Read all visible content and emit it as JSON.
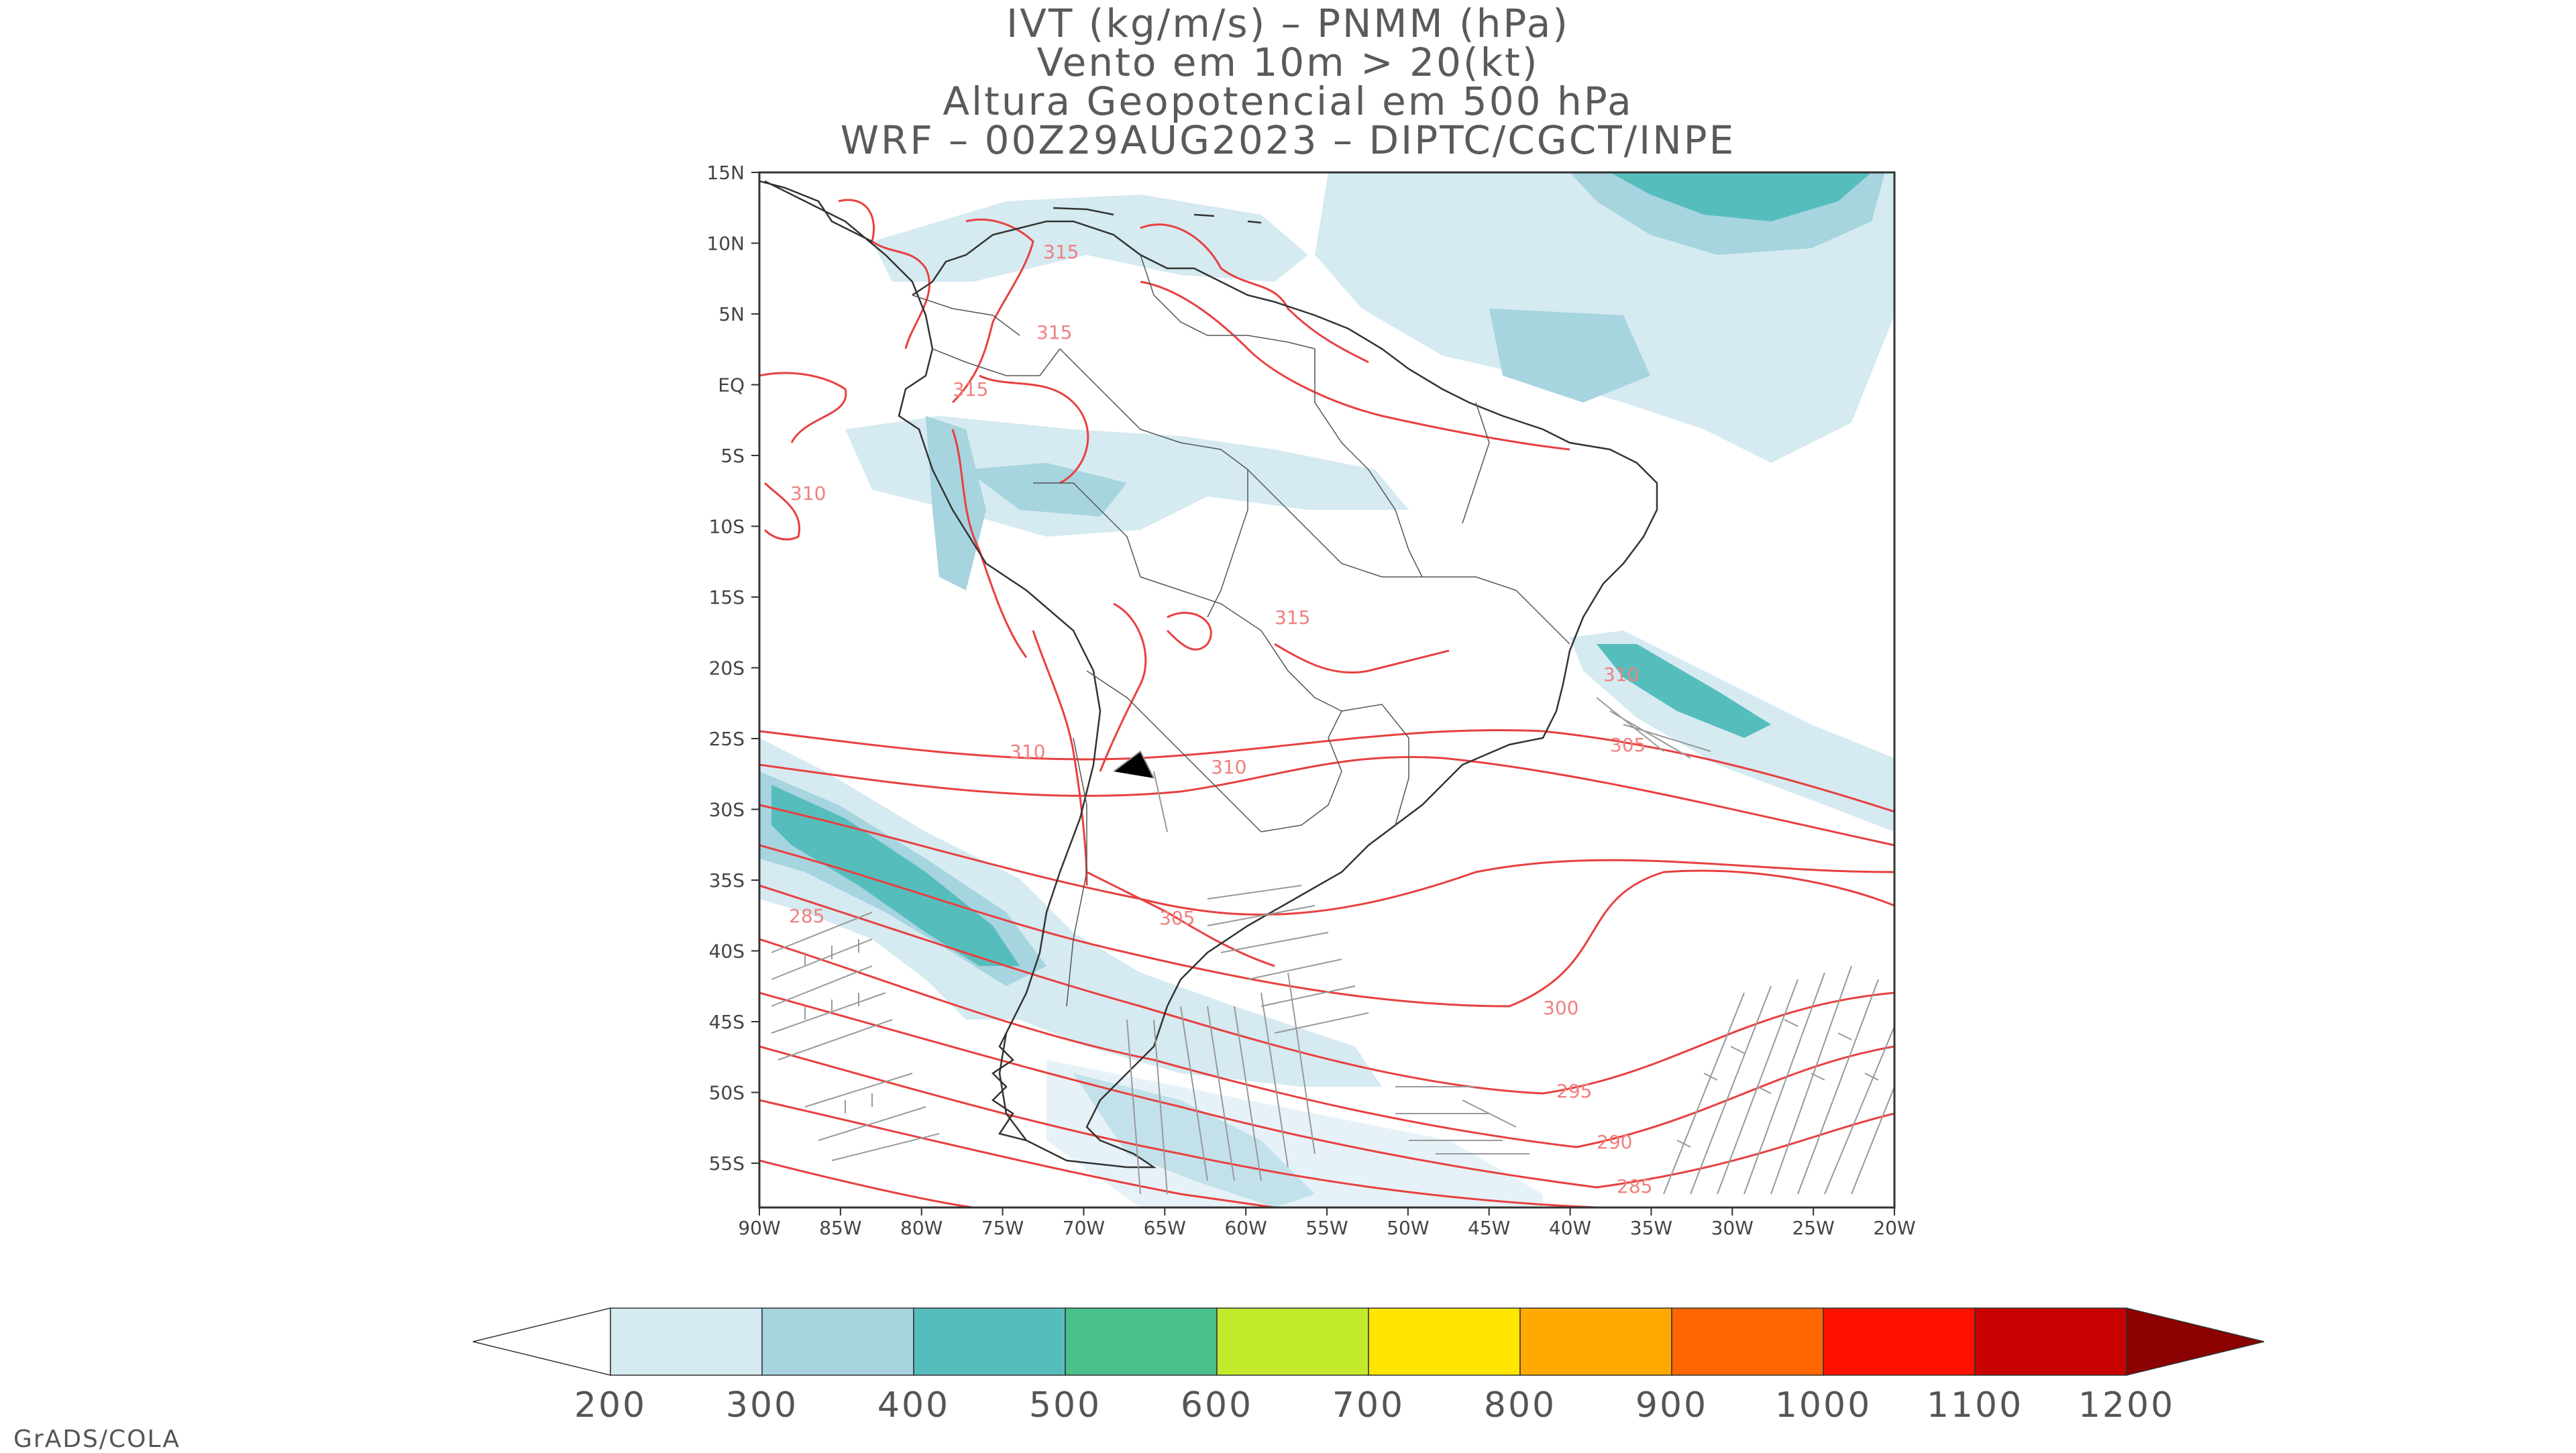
{
  "title_lines": [
    "IVT (kg/m/s) – PNMM (hPa)",
    "Vento em 10m > 20(kt)",
    "Altura Geopotencial em 500 hPa",
    "WRF – 00Z29AUG2023 – DIPTC/CGCT/INPE"
  ],
  "lat_labels": [
    "15N",
    "10N",
    "5N",
    "EQ",
    "5S",
    "10S",
    "15S",
    "20S",
    "25S",
    "30S",
    "35S",
    "40S",
    "45S",
    "50S",
    "55S"
  ],
  "lon_labels": [
    "90W",
    "85W",
    "80W",
    "75W",
    "70W",
    "65W",
    "60W",
    "55W",
    "50W",
    "45W",
    "40W",
    "35W",
    "30W",
    "25W",
    "20W"
  ],
  "contour_labels": [
    "310",
    "310",
    "305",
    "300",
    "295",
    "290",
    "285",
    "285",
    "310",
    "310",
    "315",
    "315",
    "315",
    "315",
    "305"
  ],
  "colorbar": {
    "ticks": [
      "200",
      "300",
      "400",
      "500",
      "600",
      "700",
      "800",
      "900",
      "1000",
      "1100",
      "1200"
    ],
    "colors": [
      "#ffffff",
      "#d5eaf1",
      "#a6d4df",
      "#56bdbd",
      "#4ac08a",
      "#c3e92b",
      "#ffe500",
      "#ffaa00",
      "#ff6600",
      "#ff1100",
      "#c80000",
      "#8b0000"
    ]
  },
  "footer": "GrADS/COLA"
}
